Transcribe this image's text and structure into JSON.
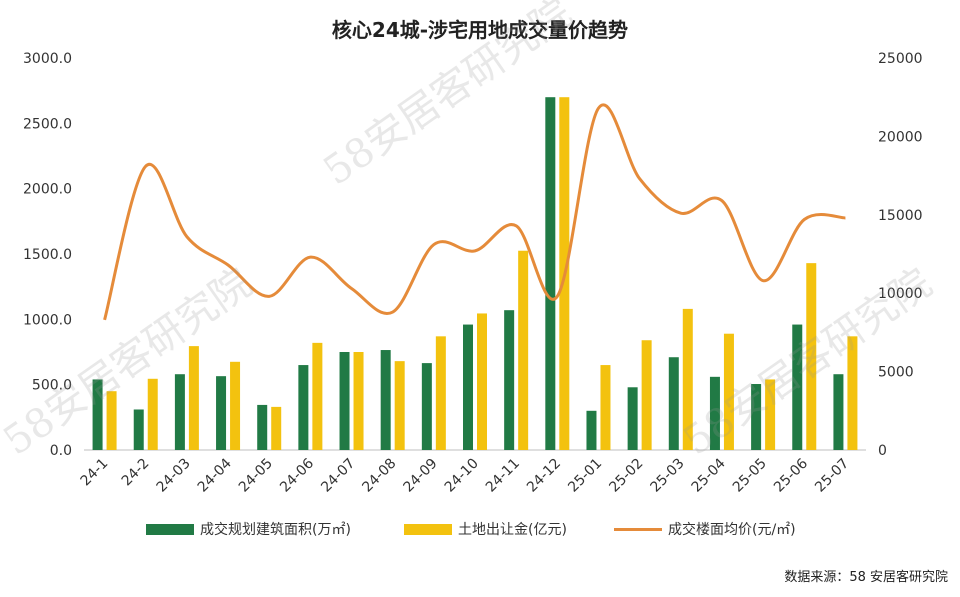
{
  "source_text": "数据来源：58 安居客研究院",
  "watermark_text": "58安居客研究院",
  "chart_data": {
    "type": "bar",
    "title": "核心24城-涉宅用地成交量价趋势",
    "categories": [
      "24-1",
      "24-2",
      "24-03",
      "24-04",
      "24-05",
      "24-06",
      "24-07",
      "24-08",
      "24-09",
      "24-10",
      "24-11",
      "24-12",
      "25-01",
      "25-02",
      "25-03",
      "25-04",
      "25-05",
      "25-06",
      "25-07"
    ],
    "y_left": {
      "ticks": [
        "0.0",
        "500.0",
        "1000.0",
        "1500.0",
        "2000.0",
        "2500.0",
        "3000.0"
      ],
      "min": 0,
      "max": 3000
    },
    "y_right": {
      "ticks": [
        "0",
        "5000",
        "10000",
        "15000",
        "20000",
        "25000"
      ],
      "min": 0,
      "max": 25000
    },
    "series": [
      {
        "name": "成交规划建筑面积(万㎡)",
        "kind": "bar",
        "axis": "left",
        "color": "#217a45",
        "values": [
          540,
          310,
          580,
          565,
          345,
          650,
          750,
          765,
          665,
          960,
          1070,
          2700,
          300,
          480,
          710,
          560,
          505,
          960,
          580
        ]
      },
      {
        "name": "土地出让金(亿元)",
        "kind": "bar",
        "axis": "left",
        "color": "#f3c20f",
        "values": [
          450,
          545,
          795,
          675,
          330,
          820,
          750,
          680,
          870,
          1045,
          1525,
          2700,
          650,
          840,
          1080,
          890,
          540,
          1430,
          870
        ]
      },
      {
        "name": "成交楼面均价(元/㎡)",
        "kind": "line",
        "axis": "right",
        "color": "#e58b3a",
        "values": [
          8300,
          18100,
          13600,
          11800,
          9800,
          12300,
          10300,
          8800,
          13100,
          12700,
          14300,
          9800,
          21800,
          17300,
          15100,
          15900,
          10800,
          14700,
          14800
        ]
      }
    ]
  }
}
